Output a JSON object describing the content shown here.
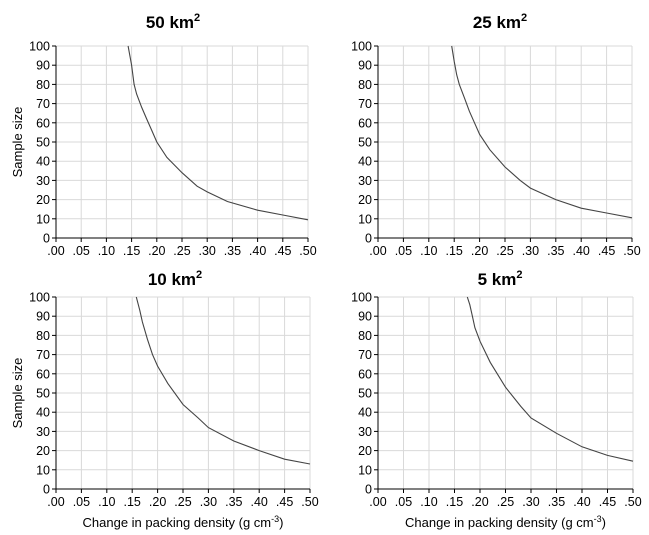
{
  "figure": {
    "ylabel_text": "Sample size",
    "xlabel_text": "Change in packing density (g cm",
    "xlabel_exp": "-3",
    "xlabel_close": ")"
  },
  "chart_data": [
    {
      "type": "line",
      "title": "50 km",
      "title_sup": "2",
      "ylabel": "Sample size",
      "xlabel": "",
      "xlim": [
        0.0,
        0.5
      ],
      "ylim": [
        0,
        100
      ],
      "xticks": [
        ".00",
        ".05",
        ".10",
        ".15",
        ".20",
        ".25",
        ".30",
        ".35",
        ".40",
        ".45",
        ".50"
      ],
      "yticks": [
        "0",
        "10",
        "20",
        "30",
        "40",
        "50",
        "60",
        "70",
        "80",
        "90",
        "100"
      ],
      "grid": true,
      "series": [
        {
          "x": [
            0.143,
            0.15,
            0.155,
            0.16,
            0.17,
            0.18,
            0.19,
            0.2,
            0.22,
            0.25,
            0.28,
            0.3,
            0.34,
            0.4,
            0.45,
            0.5
          ],
          "y": [
            100,
            90,
            80,
            75,
            68,
            62,
            56,
            50,
            42,
            34,
            27,
            24,
            19,
            14.5,
            12,
            9.5
          ]
        }
      ]
    },
    {
      "type": "line",
      "title": "25 km",
      "title_sup": "2",
      "ylabel": "",
      "xlabel": "",
      "xlim": [
        0.0,
        0.5
      ],
      "ylim": [
        0,
        100
      ],
      "xticks": [
        ".00",
        ".05",
        ".10",
        ".15",
        ".20",
        ".25",
        ".30",
        ".35",
        ".40",
        ".45",
        ".50"
      ],
      "yticks": [
        "0",
        "10",
        "20",
        "30",
        "40",
        "50",
        "60",
        "70",
        "80",
        "90",
        "100"
      ],
      "grid": true,
      "series": [
        {
          "x": [
            0.145,
            0.15,
            0.155,
            0.16,
            0.17,
            0.18,
            0.19,
            0.2,
            0.22,
            0.25,
            0.28,
            0.3,
            0.35,
            0.4,
            0.45,
            0.5
          ],
          "y": [
            100,
            92,
            85,
            80,
            73,
            66,
            60,
            54,
            46,
            37,
            30,
            26,
            20,
            15.5,
            13,
            10.5
          ]
        }
      ]
    },
    {
      "type": "line",
      "title": "10 km",
      "title_sup": "2",
      "ylabel": "Sample size",
      "xlabel": "Change in packing density (g cm-3)",
      "xlim": [
        0.0,
        0.5
      ],
      "ylim": [
        0,
        100
      ],
      "xticks": [
        ".00",
        ".05",
        ".10",
        ".15",
        ".20",
        ".25",
        ".30",
        ".35",
        ".40",
        ".45",
        ".50"
      ],
      "yticks": [
        "0",
        "10",
        "20",
        "30",
        "40",
        "50",
        "60",
        "70",
        "80",
        "90",
        "100"
      ],
      "grid": true,
      "series": [
        {
          "x": [
            0.158,
            0.165,
            0.17,
            0.18,
            0.19,
            0.2,
            0.22,
            0.25,
            0.28,
            0.3,
            0.35,
            0.4,
            0.45,
            0.5
          ],
          "y": [
            100,
            93,
            87,
            78,
            70,
            64,
            55,
            44,
            37,
            32,
            25,
            20,
            15.5,
            13
          ]
        }
      ]
    },
    {
      "type": "line",
      "title": "5 km",
      "title_sup": "2",
      "ylabel": "",
      "xlabel": "Change in packing density (g cm-3)",
      "xlim": [
        0.0,
        0.5
      ],
      "ylim": [
        0,
        100
      ],
      "xticks": [
        ".00",
        ".05",
        ".10",
        ".15",
        ".20",
        ".25",
        ".30",
        ".35",
        ".40",
        ".45",
        ".50"
      ],
      "yticks": [
        "0",
        "10",
        "20",
        "30",
        "40",
        "50",
        "60",
        "70",
        "80",
        "90",
        "100"
      ],
      "grid": true,
      "series": [
        {
          "x": [
            0.175,
            0.18,
            0.185,
            0.19,
            0.2,
            0.22,
            0.25,
            0.28,
            0.3,
            0.35,
            0.4,
            0.45,
            0.5
          ],
          "y": [
            100,
            96,
            90,
            84,
            77,
            66,
            53,
            43,
            37,
            29,
            22,
            17.5,
            14.5
          ]
        }
      ]
    }
  ]
}
